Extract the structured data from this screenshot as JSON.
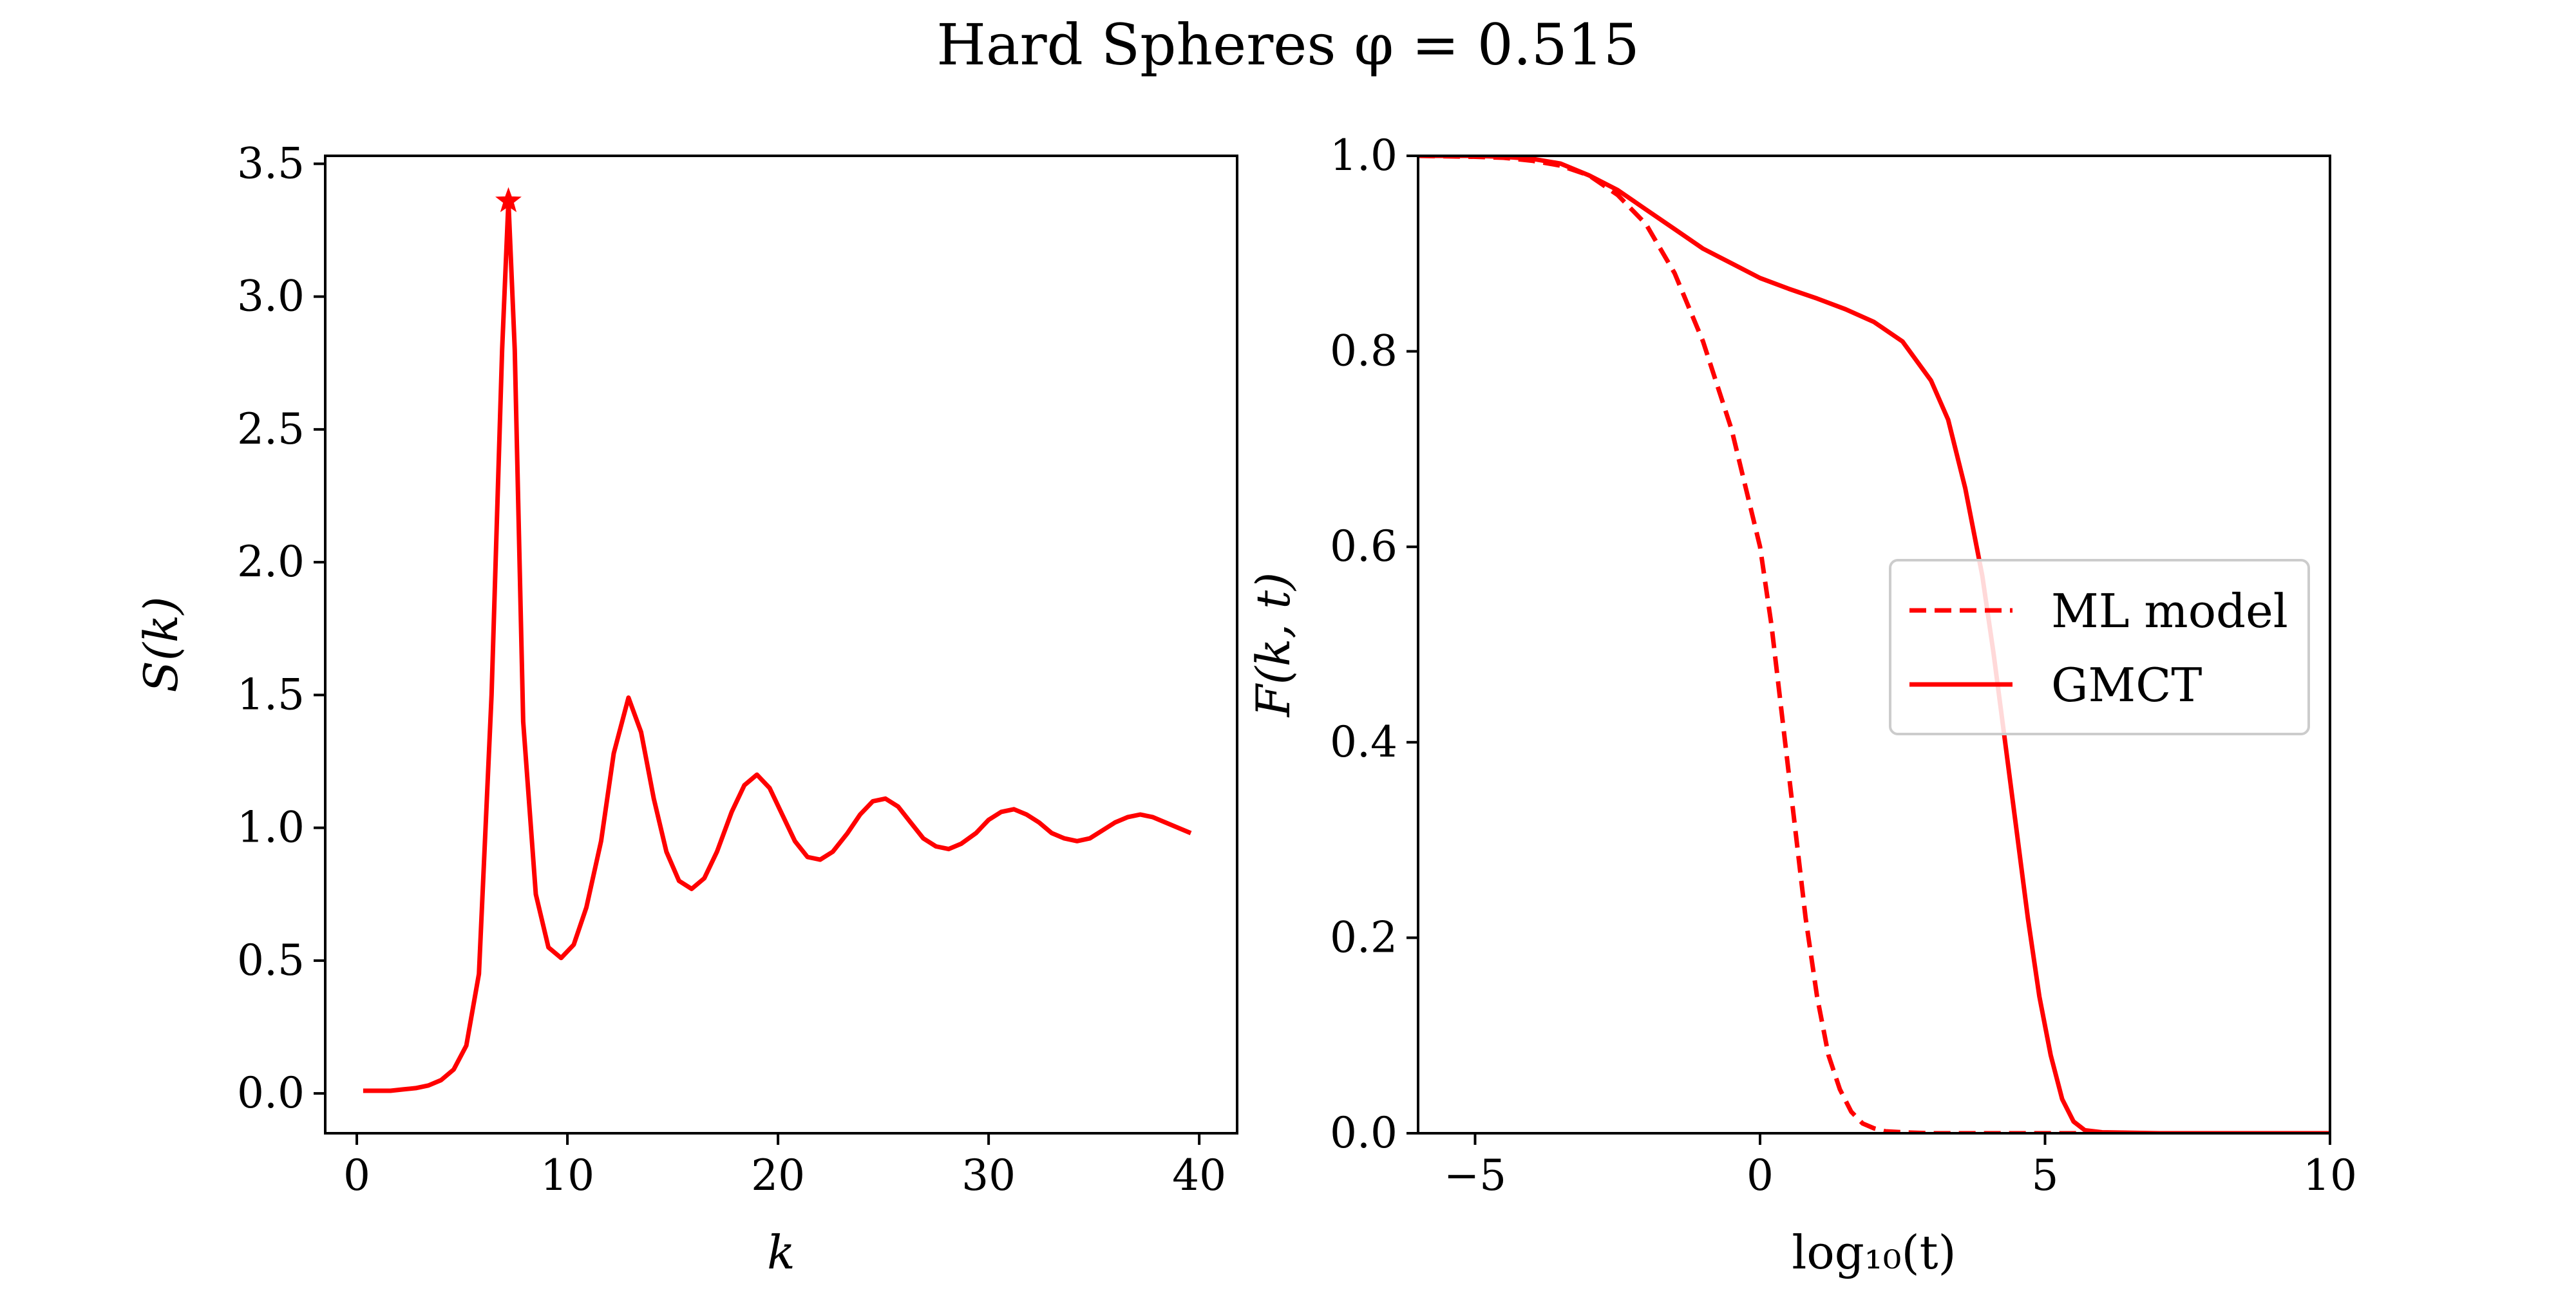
{
  "figure": {
    "title": "Hard Spheres φ = 0.515"
  },
  "chart_data": [
    {
      "type": "line",
      "xlabel": "k",
      "ylabel": "S(k)",
      "xlim": [
        -1.5,
        41.8
      ],
      "ylim": [
        -0.15,
        3.53
      ],
      "xticks": [
        0,
        10,
        20,
        30,
        40
      ],
      "xtick_labels": [
        "0",
        "10",
        "20",
        "30",
        "40"
      ],
      "yticks": [
        0.0,
        0.5,
        1.0,
        1.5,
        2.0,
        2.5,
        3.0,
        3.5
      ],
      "ytick_labels": [
        "0.0",
        "0.5",
        "1.0",
        "1.5",
        "2.0",
        "2.5",
        "3.0",
        "3.5"
      ],
      "grid": false,
      "color": "#ff0000",
      "series": [
        {
          "style": "solid",
          "x": [
            0.3,
            1.0,
            1.6,
            2.2,
            2.8,
            3.4,
            4.0,
            4.6,
            5.2,
            5.8,
            6.4,
            6.9,
            7.2,
            7.5,
            7.9,
            8.5,
            9.1,
            9.7,
            10.3,
            10.9,
            11.6,
            12.2,
            12.9,
            13.5,
            14.1,
            14.7,
            15.3,
            15.9,
            16.5,
            17.1,
            17.8,
            18.4,
            19.0,
            19.6,
            20.2,
            20.8,
            21.4,
            22.0,
            22.6,
            23.3,
            23.9,
            24.5,
            25.1,
            25.7,
            26.3,
            26.9,
            27.5,
            28.1,
            28.7,
            29.4,
            30.0,
            30.6,
            31.2,
            31.8,
            32.4,
            33.0,
            33.6,
            34.2,
            34.8,
            35.4,
            36.0,
            36.6,
            37.2,
            37.8,
            38.4,
            39.0,
            39.6
          ],
          "y": [
            0.01,
            0.01,
            0.01,
            0.015,
            0.02,
            0.03,
            0.05,
            0.09,
            0.18,
            0.45,
            1.5,
            2.8,
            3.36,
            2.8,
            1.4,
            0.75,
            0.55,
            0.51,
            0.56,
            0.7,
            0.95,
            1.28,
            1.49,
            1.36,
            1.11,
            0.91,
            0.8,
            0.77,
            0.81,
            0.91,
            1.06,
            1.16,
            1.2,
            1.15,
            1.05,
            0.95,
            0.89,
            0.88,
            0.91,
            0.98,
            1.05,
            1.1,
            1.11,
            1.08,
            1.02,
            0.96,
            0.93,
            0.92,
            0.94,
            0.98,
            1.03,
            1.06,
            1.07,
            1.05,
            1.02,
            0.98,
            0.96,
            0.95,
            0.96,
            0.99,
            1.02,
            1.04,
            1.05,
            1.04,
            1.02,
            1.0,
            0.98
          ]
        }
      ],
      "marker": {
        "type": "star",
        "x": 7.2,
        "y": 3.36
      }
    },
    {
      "type": "line",
      "xlabel": "log₁₀(t)",
      "ylabel": "F(k, t)",
      "xlim": [
        -6.0,
        10.0
      ],
      "ylim": [
        0.0,
        1.0
      ],
      "xticks": [
        -5,
        0,
        5,
        10
      ],
      "xtick_labels": [
        "−5",
        "0",
        "5",
        "10"
      ],
      "yticks": [
        0.0,
        0.2,
        0.4,
        0.6,
        0.8,
        1.0
      ],
      "ytick_labels": [
        "0.0",
        "0.2",
        "0.4",
        "0.6",
        "0.8",
        "1.0"
      ],
      "grid": false,
      "color": "#ff0000",
      "legend": {
        "placement": "center-right"
      },
      "series": [
        {
          "name": "ML model",
          "style": "dashed",
          "x": [
            -6.0,
            -5.0,
            -4.5,
            -4.0,
            -3.5,
            -3.0,
            -2.5,
            -2.0,
            -1.5,
            -1.0,
            -0.5,
            0.0,
            0.2,
            0.4,
            0.6,
            0.8,
            1.0,
            1.2,
            1.4,
            1.6,
            1.8,
            2.0,
            2.2,
            2.5,
            3.0,
            4.0,
            6.0,
            8.0,
            10.0
          ],
          "y": [
            1.0,
            0.999,
            0.998,
            0.995,
            0.99,
            0.98,
            0.96,
            0.93,
            0.88,
            0.81,
            0.72,
            0.6,
            0.52,
            0.42,
            0.32,
            0.22,
            0.14,
            0.08,
            0.045,
            0.022,
            0.01,
            0.005,
            0.002,
            0.001,
            0.0,
            0.0,
            0.0,
            0.0,
            0.0
          ]
        },
        {
          "name": "GMCT",
          "style": "solid",
          "x": [
            -6.0,
            -5.0,
            -4.5,
            -4.0,
            -3.5,
            -3.0,
            -2.5,
            -2.0,
            -1.5,
            -1.0,
            -0.5,
            0.0,
            0.5,
            1.0,
            1.5,
            2.0,
            2.5,
            3.0,
            3.3,
            3.6,
            3.9,
            4.1,
            4.3,
            4.5,
            4.7,
            4.9,
            5.1,
            5.3,
            5.5,
            5.7,
            6.0,
            7.0,
            8.0,
            10.0
          ],
          "y": [
            1.0,
            1.0,
            0.999,
            0.997,
            0.992,
            0.98,
            0.965,
            0.945,
            0.925,
            0.905,
            0.89,
            0.875,
            0.864,
            0.854,
            0.843,
            0.83,
            0.81,
            0.77,
            0.73,
            0.66,
            0.57,
            0.49,
            0.4,
            0.31,
            0.22,
            0.14,
            0.08,
            0.035,
            0.012,
            0.003,
            0.001,
            0.0,
            0.0,
            0.0
          ]
        }
      ]
    }
  ]
}
